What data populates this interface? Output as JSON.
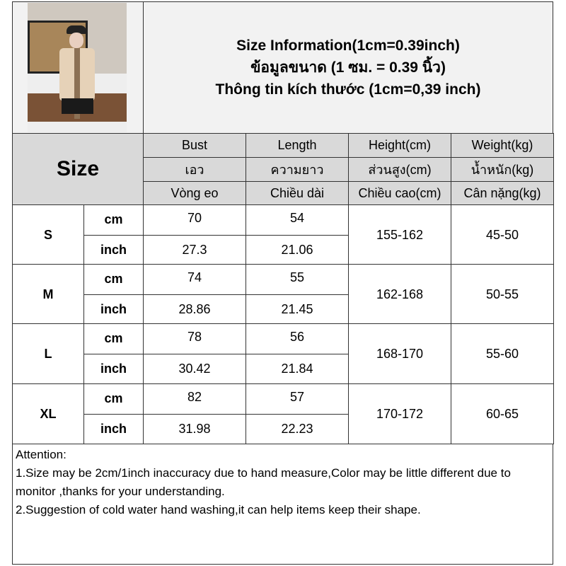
{
  "title": {
    "line1": "Size Information(1cm=0.39inch)",
    "line2": "ข้อมูลขนาด (1 ซม. = 0.39 นิ้ว)",
    "line3": "Thông tin kích thước (1cm=0,39 inch)"
  },
  "size_label": "Size",
  "columns": [
    {
      "en": "Bust",
      "th": "เอว",
      "vi": "Vòng eo"
    },
    {
      "en": "Length",
      "th": "ความยาว",
      "vi": "Chiều dài"
    },
    {
      "en": "Height(cm)",
      "th": "ส่วนสูง(cm)",
      "vi": "Chiều cao(cm)"
    },
    {
      "en": "Weight(kg)",
      "th": "น้ำหนัก(kg)",
      "vi": "Cân nặng(kg)"
    }
  ],
  "rows": [
    {
      "size": "S",
      "cm_label": "cm",
      "inch_label": "inch",
      "bust_cm": "70",
      "length_cm": "54",
      "bust_inch": "27.3",
      "length_inch": "21.06",
      "height": "155-162",
      "weight": "45-50"
    },
    {
      "size": "M",
      "cm_label": "cm",
      "inch_label": "inch",
      "bust_cm": "74",
      "length_cm": "55",
      "bust_inch": "28.86",
      "length_inch": "21.45",
      "height": "162-168",
      "weight": "50-55"
    },
    {
      "size": "L",
      "cm_label": "cm",
      "inch_label": "inch",
      "bust_cm": "78",
      "length_cm": "56",
      "bust_inch": "30.42",
      "length_inch": "21.84",
      "height": "168-170",
      "weight": "55-60"
    },
    {
      "size": "XL",
      "cm_label": "cm",
      "inch_label": "inch",
      "bust_cm": "82",
      "length_cm": "57",
      "bust_inch": "31.98",
      "length_inch": "22.23",
      "height": "170-172",
      "weight": "60-65"
    }
  ],
  "notes": {
    "heading": "Attention:",
    "line1": "1.Size may be 2cm/1inch inaccuracy due to hand measure,Color may be little different due to monitor ,thanks for your understanding.",
    "line2": "2.Suggestion of cold water hand washing,it can help items keep their shape."
  }
}
